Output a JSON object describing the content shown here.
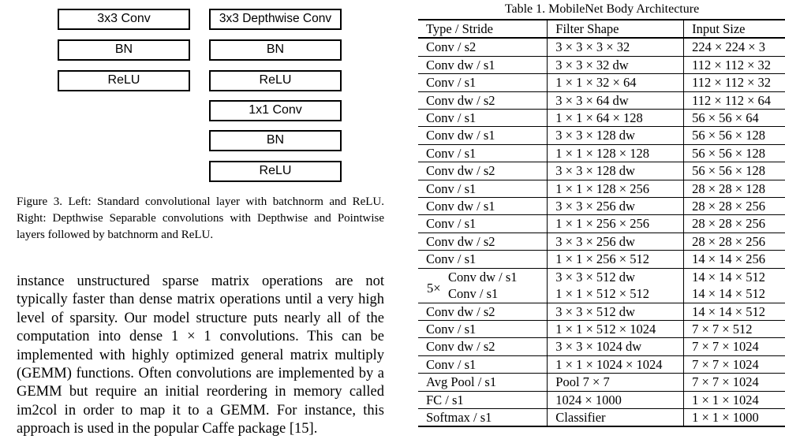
{
  "figure": {
    "left_boxes": [
      "3x3 Conv",
      "BN",
      "ReLU"
    ],
    "right_boxes": [
      "3x3 Depthwise Conv",
      "BN",
      "ReLU",
      "1x1 Conv",
      "BN",
      "ReLU"
    ],
    "caption": "Figure 3. Left: Standard convolutional layer with batchnorm and ReLU. Right: Depthwise Separable convolutions with Depthwise and Pointwise layers followed by batchnorm and ReLU."
  },
  "body_text": "instance unstructured sparse matrix operations are not typically faster than dense matrix operations until a very high level of sparsity. Our model structure puts nearly all of the computation into dense 1 × 1 convolutions. This can be implemented with highly optimized general matrix multiply (GEMM) functions. Often convolutions are implemented by a GEMM but require an initial reordering in memory called im2col in order to map it to a GEMM. For instance, this approach is used in the popular Caffe package [15].",
  "table": {
    "title": "Table 1. MobileNet Body Architecture",
    "headers": [
      "Type / Stride",
      "Filter Shape",
      "Input Size"
    ],
    "repeat_label": "5×",
    "rows": [
      [
        "Conv / s2",
        "3 × 3 × 3 × 32",
        "224 × 224 × 3"
      ],
      [
        "Conv dw / s1",
        "3 × 3 × 32 dw",
        "112 × 112 × 32"
      ],
      [
        "Conv / s1",
        "1 × 1 × 32 × 64",
        "112 × 112 × 32"
      ],
      [
        "Conv dw / s2",
        "3 × 3 × 64 dw",
        "112 × 112 × 64"
      ],
      [
        "Conv / s1",
        "1 × 1 × 64 × 128",
        "56 × 56 × 64"
      ],
      [
        "Conv dw / s1",
        "3 × 3 × 128 dw",
        "56 × 56 × 128"
      ],
      [
        "Conv / s1",
        "1 × 1 × 128 × 128",
        "56 × 56 × 128"
      ],
      [
        "Conv dw / s2",
        "3 × 3 × 128 dw",
        "56 × 56 × 128"
      ],
      [
        "Conv / s1",
        "1 × 1 × 128 × 256",
        "28 × 28 × 128"
      ],
      [
        "Conv dw / s1",
        "3 × 3 × 256 dw",
        "28 × 28 × 256"
      ],
      [
        "Conv / s1",
        "1 × 1 × 256 × 256",
        "28 × 28 × 256"
      ],
      [
        "Conv dw / s2",
        "3 × 3 × 256 dw",
        "28 × 28 × 256"
      ],
      [
        "Conv / s1",
        "1 × 1 × 256 × 512",
        "14 × 14 × 256"
      ],
      [
        "Conv dw / s1",
        "3 × 3 × 512 dw",
        "14 × 14 × 512"
      ],
      [
        "Conv / s1",
        "1 × 1 × 512 × 512",
        "14 × 14 × 512"
      ],
      [
        "Conv dw / s2",
        "3 × 3 × 512 dw",
        "14 × 14 × 512"
      ],
      [
        "Conv / s1",
        "1 × 1 × 512 × 1024",
        "7 × 7 × 512"
      ],
      [
        "Conv dw / s2",
        "3 × 3 × 1024 dw",
        "7 × 7 × 1024"
      ],
      [
        "Conv / s1",
        "1 × 1 × 1024 × 1024",
        "7 × 7 × 1024"
      ],
      [
        "Avg Pool / s1",
        "Pool 7 × 7",
        "7 × 7 × 1024"
      ],
      [
        "FC / s1",
        "1024 × 1000",
        "1 × 1 × 1024"
      ],
      [
        "Softmax / s1",
        "Classifier",
        "1 × 1 × 1000"
      ]
    ]
  }
}
